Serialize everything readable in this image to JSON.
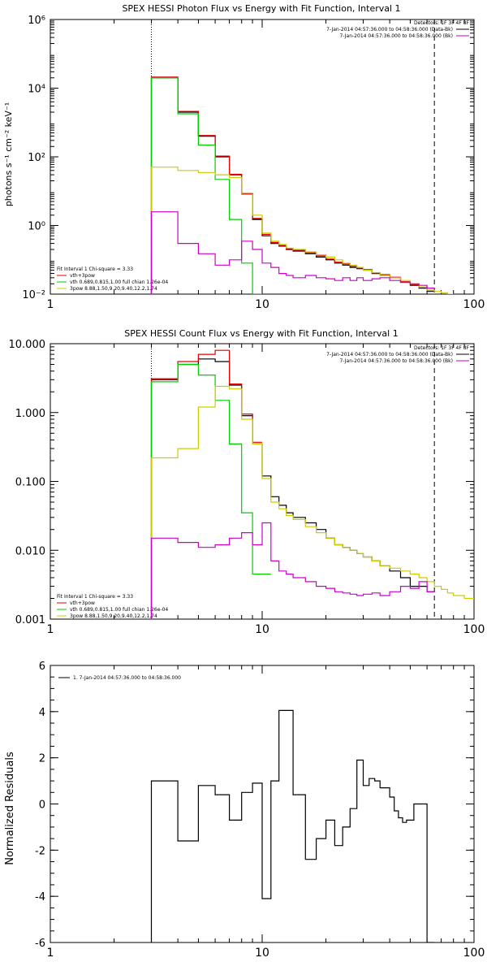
{
  "chart_data": [
    {
      "type": "line",
      "title": "SPEX HESSI Photon Flux vs Energy with Fit Function, Interval 1",
      "xlabel": "",
      "ylabel": "photons s⁻¹ cm⁻² keV⁻¹",
      "xscale": "log",
      "yscale": "log",
      "xlim": [
        1,
        100
      ],
      "ylim": [
        0.01,
        1000000
      ],
      "x_ticks": [
        {
          "value": 1,
          "label": "1"
        },
        {
          "value": 10,
          "label": "10"
        },
        {
          "value": 100,
          "label": "100"
        }
      ],
      "y_ticks": [
        {
          "value": 0.01,
          "label": "10⁻²"
        },
        {
          "value": 1,
          "label": "10⁰"
        },
        {
          "value": 100,
          "label": "10²"
        },
        {
          "value": 10000,
          "label": "10⁴"
        },
        {
          "value": 1000000,
          "label": "10⁶"
        }
      ],
      "vlines": [
        {
          "x": 3,
          "style": "dotted"
        },
        {
          "x": 65,
          "style": "dashed"
        }
      ],
      "legend_top": {
        "header": "Detectors: 1F 3F 4F 8F",
        "entries": [
          {
            "label": "7-Jan-2014 04:57:36.000 to 04:58:36.000 (Data-Bk)",
            "color": "#000000"
          },
          {
            "label": "7-Jan-2014 04:57:36.000 to 04:58:36.000 (Bk)",
            "color": "#cc00cc"
          }
        ]
      },
      "legend_bottom": {
        "header": "Fit Interval 1   Chi-square = 3.33",
        "entries": [
          {
            "label": "vth+3pow",
            "color": "#e00000"
          },
          {
            "label": "vth 0.689,0.815,1.00  full chian 1.26e-04",
            "color": "#00cc00"
          },
          {
            "label": "3pow 8.88,1.50,9.20,9.40,12.2,1.74",
            "color": "#cccc00"
          }
        ]
      },
      "series": [
        {
          "color": "#000000",
          "x": [
            3,
            3.5,
            4,
            4.5,
            5,
            5.5,
            6,
            6.5,
            7,
            8,
            9,
            10,
            11,
            12,
            13,
            14,
            16,
            18,
            20,
            22,
            24,
            26,
            28,
            30,
            33,
            36,
            40,
            45,
            50,
            55,
            60,
            65
          ],
          "values": [
            20000,
            20000,
            2000,
            2000,
            400,
            400,
            100,
            100,
            30,
            8,
            1.5,
            0.5,
            0.3,
            0.25,
            0.2,
            0.18,
            0.15,
            0.12,
            0.1,
            0.08,
            0.07,
            0.06,
            0.055,
            0.05,
            0.04,
            0.035,
            0.03,
            0.022,
            0.018,
            0.015,
            0.012,
            0.012
          ]
        },
        {
          "color": "#e00000",
          "x": [
            3,
            3.5,
            4,
            4.5,
            5,
            5.5,
            6,
            6.5,
            7,
            8,
            9,
            10,
            11,
            12,
            13,
            14,
            16,
            18,
            20,
            22,
            24,
            26,
            28,
            30,
            33,
            36,
            40,
            45,
            50,
            55,
            60,
            65
          ],
          "values": [
            21000,
            21000,
            2100,
            2100,
            420,
            420,
            105,
            105,
            31,
            8.5,
            1.6,
            0.55,
            0.32,
            0.26,
            0.21,
            0.19,
            0.16,
            0.13,
            0.105,
            0.085,
            0.075,
            0.065,
            0.058,
            0.052,
            0.042,
            0.037,
            0.031,
            0.023,
            0.019,
            0.016,
            0.013,
            0.013
          ]
        },
        {
          "color": "#00cc00",
          "x": [
            3,
            3.5,
            4,
            4.5,
            5,
            5.5,
            6,
            6.5,
            7,
            8,
            9,
            10
          ],
          "values": [
            20000,
            20000,
            1800,
            1800,
            220,
            220,
            22,
            22,
            1.5,
            0.08,
            0.01,
            0.01
          ]
        },
        {
          "color": "#cccc00",
          "x": [
            3,
            3.5,
            4,
            4.5,
            5,
            5.5,
            6,
            6.5,
            7,
            8,
            9,
            10,
            11,
            12,
            13,
            14,
            16,
            18,
            20,
            22,
            24,
            26,
            28,
            30,
            33,
            36,
            40,
            45,
            50,
            55,
            60,
            65,
            70,
            75,
            80
          ],
          "values": [
            50,
            50,
            40,
            40,
            35,
            35,
            30,
            30,
            25,
            8,
            2,
            0.6,
            0.35,
            0.28,
            0.22,
            0.2,
            0.17,
            0.14,
            0.12,
            0.1,
            0.08,
            0.07,
            0.06,
            0.05,
            0.042,
            0.035,
            0.03,
            0.025,
            0.02,
            0.016,
            0.013,
            0.012,
            0.011,
            0.01,
            0.01
          ]
        },
        {
          "color": "#cc00cc",
          "x": [
            3,
            3.5,
            4,
            4.5,
            5,
            5.5,
            6,
            6.5,
            7,
            8,
            9,
            10,
            11,
            12,
            13,
            14,
            16,
            18,
            20,
            22,
            24,
            26,
            28,
            30,
            33,
            36,
            40,
            45,
            50,
            55,
            60,
            65
          ],
          "values": [
            2.5,
            2.5,
            0.3,
            0.3,
            0.15,
            0.15,
            0.07,
            0.07,
            0.1,
            0.35,
            0.2,
            0.08,
            0.06,
            0.04,
            0.035,
            0.03,
            0.035,
            0.03,
            0.028,
            0.025,
            0.03,
            0.025,
            0.03,
            0.025,
            0.028,
            0.03,
            0.025,
            0.022,
            0.02,
            0.018,
            0.015,
            0.015
          ]
        }
      ]
    },
    {
      "type": "line",
      "title": "SPEX HESSI Count Flux vs Energy with Fit Function, Interval 1",
      "xlabel": "",
      "ylabel": "",
      "xscale": "log",
      "yscale": "log",
      "xlim": [
        1,
        100
      ],
      "ylim": [
        0.001,
        10
      ],
      "x_ticks": [
        {
          "value": 1,
          "label": "1"
        },
        {
          "value": 10,
          "label": "10"
        },
        {
          "value": 100,
          "label": "100"
        }
      ],
      "y_ticks": [
        {
          "value": 0.001,
          "label": "0.001"
        },
        {
          "value": 0.01,
          "label": "0.010"
        },
        {
          "value": 0.1,
          "label": "0.100"
        },
        {
          "value": 1,
          "label": "1.000"
        },
        {
          "value": 10,
          "label": "10.000"
        }
      ],
      "vlines": [
        {
          "x": 3,
          "style": "dotted"
        },
        {
          "x": 65,
          "style": "dashed"
        }
      ],
      "legend_top": {
        "header": "Detectors: 1F 3F 4F 8F",
        "entries": [
          {
            "label": "7-Jan-2014 04:57:36.000 to 04:58:36.000 (Data-Bk)",
            "color": "#000000"
          },
          {
            "label": "7-Jan-2014 04:57:36.000 to 04:58:36.000 (Bk)",
            "color": "#cc00cc"
          }
        ]
      },
      "legend_bottom": {
        "header": "Fit Interval 1   Chi-square = 3.33",
        "entries": [
          {
            "label": "vth+3pow",
            "color": "#e00000"
          },
          {
            "label": "vth 0.689,0.815,1.00  full chian 1.26e-04",
            "color": "#00cc00"
          },
          {
            "label": "3pow 8.88,1.50,9.20,9.40,12.2,1.74",
            "color": "#cccc00"
          }
        ]
      },
      "series": [
        {
          "color": "#000000",
          "x": [
            3,
            3.5,
            4,
            4.5,
            5,
            5.5,
            6,
            6.5,
            7,
            8,
            9,
            10,
            11,
            12,
            13,
            14,
            16,
            18,
            20,
            22,
            24,
            26,
            28,
            30,
            33,
            36,
            40,
            45,
            50,
            55,
            60,
            65
          ],
          "values": [
            3,
            3,
            5,
            5,
            6,
            6,
            5.5,
            5.5,
            2.5,
            0.9,
            0.35,
            0.12,
            0.06,
            0.045,
            0.035,
            0.03,
            0.025,
            0.02,
            0.015,
            0.012,
            0.011,
            0.01,
            0.009,
            0.008,
            0.007,
            0.006,
            0.005,
            0.004,
            0.003,
            0.003,
            0.0025,
            0.0025
          ]
        },
        {
          "color": "#e00000",
          "x": [
            3,
            3.5,
            4,
            4.5,
            5,
            5.5,
            6,
            6.5,
            7,
            8,
            9,
            10
          ],
          "values": [
            3.1,
            3.1,
            5.5,
            5.5,
            7,
            7,
            8,
            8,
            2.6,
            0.95,
            0.37,
            0.13
          ]
        },
        {
          "color": "#00cc00",
          "x": [
            3,
            3.5,
            4,
            4.5,
            5,
            5.5,
            6,
            6.5,
            7,
            8,
            9,
            10,
            11
          ],
          "values": [
            2.8,
            2.8,
            5,
            5,
            3.5,
            3.5,
            1.5,
            1.5,
            0.35,
            0.035,
            0.0045,
            0.0045,
            0.001
          ]
        },
        {
          "color": "#cccc00",
          "x": [
            3,
            3.5,
            4,
            4.5,
            5,
            5.5,
            6,
            6.5,
            7,
            8,
            9,
            10,
            11,
            12,
            13,
            14,
            16,
            18,
            20,
            22,
            24,
            26,
            28,
            30,
            33,
            36,
            40,
            45,
            50,
            55,
            60,
            65,
            70,
            75,
            80,
            90,
            100
          ],
          "values": [
            0.22,
            0.22,
            0.3,
            0.3,
            1.2,
            1.2,
            2.4,
            2.4,
            2.2,
            0.8,
            0.35,
            0.11,
            0.05,
            0.04,
            0.032,
            0.028,
            0.022,
            0.018,
            0.015,
            0.012,
            0.011,
            0.01,
            0.009,
            0.008,
            0.007,
            0.006,
            0.0055,
            0.005,
            0.0045,
            0.004,
            0.0035,
            0.003,
            0.0027,
            0.0024,
            0.0022,
            0.002,
            0.0018
          ]
        },
        {
          "color": "#cc00cc",
          "x": [
            3,
            3.5,
            4,
            4.5,
            5,
            5.5,
            6,
            6.5,
            7,
            8,
            9,
            10,
            11,
            12,
            13,
            14,
            16,
            18,
            20,
            22,
            24,
            26,
            28,
            30,
            33,
            36,
            40,
            45,
            50,
            55,
            60,
            65
          ],
          "values": [
            0.015,
            0.015,
            0.013,
            0.013,
            0.011,
            0.011,
            0.012,
            0.012,
            0.015,
            0.018,
            0.012,
            0.025,
            0.007,
            0.005,
            0.0045,
            0.004,
            0.0035,
            0.003,
            0.0028,
            0.0025,
            0.0024,
            0.0023,
            0.0022,
            0.0023,
            0.0024,
            0.0022,
            0.0025,
            0.003,
            0.0028,
            0.0035,
            0.0025,
            0.0025
          ]
        }
      ]
    },
    {
      "type": "line",
      "title": "",
      "xlabel": "",
      "ylabel": "Normalized Residuals",
      "xscale": "log",
      "yscale": "linear",
      "xlim": [
        1,
        100
      ],
      "ylim": [
        -6,
        6
      ],
      "x_ticks": [
        {
          "value": 1,
          "label": "1"
        },
        {
          "value": 10,
          "label": "10"
        },
        {
          "value": 100,
          "label": "100"
        }
      ],
      "y_ticks": [
        {
          "value": -6,
          "label": "-6"
        },
        {
          "value": -4,
          "label": "-4"
        },
        {
          "value": -2,
          "label": "-2"
        },
        {
          "value": 0,
          "label": "0"
        },
        {
          "value": 2,
          "label": "2"
        },
        {
          "value": 4,
          "label": "4"
        },
        {
          "value": 6,
          "label": "6"
        }
      ],
      "vlines": [],
      "legend_top": {
        "header": "",
        "entries": [
          {
            "label": "1.  7-Jan-2014 04:57:36.000 to 04:58:36.000",
            "color": "#000000"
          }
        ]
      },
      "legend_bottom": {
        "header": "",
        "entries": []
      },
      "series": [
        {
          "color": "#000000",
          "x": [
            3,
            3.5,
            4,
            4.5,
            5,
            5.5,
            6,
            6.5,
            7,
            7.5,
            8,
            8.5,
            9,
            9.5,
            10,
            10.5,
            11,
            12,
            13,
            14,
            15,
            16,
            17,
            18,
            19,
            20,
            22,
            24,
            26,
            28,
            30,
            32,
            34,
            36,
            38,
            40,
            42,
            44,
            46,
            48,
            50,
            52,
            55,
            58,
            60,
            62,
            65
          ],
          "values": [
            1,
            1,
            -1.6,
            -1.6,
            0.8,
            0.8,
            0.4,
            0.4,
            -0.7,
            -0.7,
            0.5,
            0.5,
            0.9,
            0.9,
            -4.1,
            -4.1,
            1,
            4.05,
            4.05,
            0.4,
            0.4,
            -2.4,
            -2.4,
            -1.5,
            -1.5,
            -0.7,
            -1.8,
            -1,
            -0.2,
            1.9,
            0.8,
            1.1,
            1,
            0.7,
            0.7,
            0.3,
            -0.3,
            -0.6,
            -0.8,
            -0.7,
            -0.7,
            0,
            0,
            0,
            -6,
            -6,
            -6
          ]
        }
      ]
    }
  ]
}
